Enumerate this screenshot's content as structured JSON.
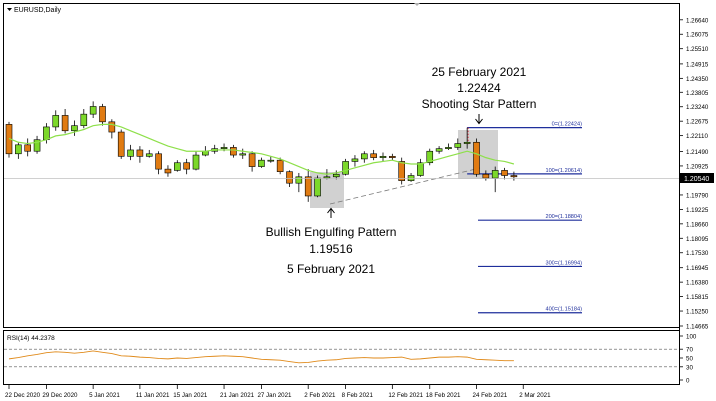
{
  "chart_data": {
    "type": "candlestick",
    "symbol_label": "EURUSD,Daily",
    "current_price": "1.20540",
    "price_axis": {
      "min": 1.14665,
      "max": 1.26945,
      "ticks": [
        "1.26640",
        "1.26075",
        "1.25510",
        "1.24915",
        "1.24350",
        "1.23805",
        "1.23240",
        "1.22675",
        "1.22110",
        "1.21490",
        "1.20925",
        "1.20360",
        "1.19790",
        "1.19225",
        "1.18660",
        "1.18095",
        "1.17530",
        "1.16945",
        "1.16380",
        "1.15815",
        "1.15250",
        "1.14665"
      ]
    },
    "x_labels": [
      {
        "i": 0,
        "label": "22 Dec 2020"
      },
      {
        "i": 4,
        "label": "29 Dec 2020"
      },
      {
        "i": 9,
        "label": "5 Jan 2021"
      },
      {
        "i": 14,
        "label": "11 Jan 2021"
      },
      {
        "i": 18,
        "label": "15 Jan 2021"
      },
      {
        "i": 23,
        "label": "21 Jan 2021"
      },
      {
        "i": 27,
        "label": "27 Jan 2021"
      },
      {
        "i": 32,
        "label": "2 Feb 2021"
      },
      {
        "i": 36,
        "label": "8 Feb 2021"
      },
      {
        "i": 41,
        "label": "12 Feb 2021"
      },
      {
        "i": 45,
        "label": "18 Feb 2021"
      },
      {
        "i": 50,
        "label": "24 Feb 2021"
      },
      {
        "i": 55,
        "label": "2 Mar 2021"
      }
    ],
    "bull_color": "#7cd82a",
    "bear_color": "#e07b12",
    "ma_color": "#8ee04a",
    "candles": [
      [
        1.2255,
        1.2265,
        1.2125,
        1.214
      ],
      [
        1.214,
        1.2185,
        1.212,
        1.2175
      ],
      [
        1.2175,
        1.22,
        1.213,
        1.215
      ],
      [
        1.215,
        1.221,
        1.214,
        1.2195
      ],
      [
        1.2195,
        1.226,
        1.218,
        1.2245
      ],
      [
        1.2245,
        1.231,
        1.223,
        1.229
      ],
      [
        1.229,
        1.2315,
        1.222,
        1.223
      ],
      [
        1.223,
        1.227,
        1.221,
        1.225
      ],
      [
        1.225,
        1.2315,
        1.224,
        1.2295
      ],
      [
        1.2295,
        1.2345,
        1.228,
        1.2325
      ],
      [
        1.2325,
        1.2335,
        1.225,
        1.2265
      ],
      [
        1.2265,
        1.2275,
        1.22,
        1.2225
      ],
      [
        1.2225,
        1.2235,
        1.212,
        1.213
      ],
      [
        1.213,
        1.2175,
        1.2115,
        1.2155
      ],
      [
        1.2155,
        1.217,
        1.2105,
        1.213
      ],
      [
        1.213,
        1.2155,
        1.2125,
        1.214
      ],
      [
        1.214,
        1.215,
        1.206,
        1.208
      ],
      [
        1.208,
        1.2095,
        1.205,
        1.2065
      ],
      [
        1.2075,
        1.2115,
        1.207,
        1.2105
      ],
      [
        1.2105,
        1.212,
        1.206,
        1.208
      ],
      [
        1.208,
        1.215,
        1.2075,
        1.2135
      ],
      [
        1.2135,
        1.217,
        1.213,
        1.215
      ],
      [
        1.215,
        1.2175,
        1.214,
        1.216
      ],
      [
        1.216,
        1.218,
        1.215,
        1.2165
      ],
      [
        1.2165,
        1.2175,
        1.2125,
        1.2135
      ],
      [
        1.2135,
        1.216,
        1.212,
        1.214
      ],
      [
        1.214,
        1.215,
        1.207,
        1.209
      ],
      [
        1.209,
        1.2125,
        1.2085,
        1.2115
      ],
      [
        1.2115,
        1.213,
        1.2105,
        1.2115
      ],
      [
        1.2115,
        1.2125,
        1.206,
        1.207
      ],
      [
        1.207,
        1.2075,
        1.201,
        1.2025
      ],
      [
        1.2025,
        1.2065,
        1.199,
        1.205
      ],
      [
        1.205,
        1.208,
        1.1952,
        1.1975
      ],
      [
        1.1975,
        1.2055,
        1.197,
        1.2045
      ],
      [
        1.2045,
        1.208,
        1.204,
        1.205
      ],
      [
        1.205,
        1.2075,
        1.204,
        1.206
      ],
      [
        1.206,
        1.212,
        1.2055,
        1.211
      ],
      [
        1.211,
        1.2135,
        1.209,
        1.212
      ],
      [
        1.212,
        1.215,
        1.2105,
        1.214
      ],
      [
        1.214,
        1.2155,
        1.2115,
        1.2125
      ],
      [
        1.2125,
        1.2145,
        1.211,
        1.213
      ],
      [
        1.213,
        1.214,
        1.2115,
        1.2125
      ],
      [
        1.211,
        1.2125,
        1.202,
        1.2035
      ],
      [
        1.2035,
        1.2065,
        1.203,
        1.2055
      ],
      [
        1.2055,
        1.212,
        1.205,
        1.2105
      ],
      [
        1.2105,
        1.216,
        1.2095,
        1.215
      ],
      [
        1.215,
        1.217,
        1.214,
        1.216
      ],
      [
        1.216,
        1.218,
        1.2155,
        1.2165
      ],
      [
        1.2165,
        1.22,
        1.2155,
        1.218
      ],
      [
        1.218,
        1.2242,
        1.216,
        1.2185
      ],
      [
        1.2185,
        1.22,
        1.205,
        1.206
      ],
      [
        1.206,
        1.2075,
        1.2035,
        1.2045
      ],
      [
        1.2045,
        1.209,
        1.199,
        1.2075
      ],
      [
        1.2075,
        1.2085,
        1.204,
        1.2055
      ],
      [
        1.2055,
        1.207,
        1.2035,
        1.205
      ]
    ],
    "ma_values": [
      1.22,
      1.2185,
      1.218,
      1.2185,
      1.2195,
      1.221,
      1.2215,
      1.2225,
      1.2235,
      1.225,
      1.2255,
      1.2255,
      1.2245,
      1.223,
      1.2215,
      1.22,
      1.2185,
      1.217,
      1.216,
      1.215,
      1.215,
      1.215,
      1.2155,
      1.2155,
      1.2155,
      1.215,
      1.2145,
      1.214,
      1.213,
      1.212,
      1.2105,
      1.209,
      1.2075,
      1.2065,
      1.206,
      1.2065,
      1.2075,
      1.2085,
      1.2095,
      1.2105,
      1.211,
      1.2115,
      1.2105,
      1.21,
      1.21,
      1.211,
      1.212,
      1.213,
      1.214,
      1.215,
      1.214,
      1.2125,
      1.2115,
      1.211,
      1.21
    ],
    "fib_levels": [
      {
        "label": "0=(1.22424)",
        "value": 1.22424
      },
      {
        "label": "100=(1.20614)",
        "value": 1.20614
      },
      {
        "label": "200=(1.18804)",
        "value": 1.18804
      },
      {
        "label": "300=(1.16994)",
        "value": 1.16994
      },
      {
        "label": "400=(1.15184)",
        "value": 1.15184
      }
    ],
    "annotations": {
      "top": [
        "25 February 2021",
        "1.22424",
        "Shooting Star Pattern"
      ],
      "bottom": [
        "Bullish Engulfing Pattern",
        "1.19516",
        "5 February 2021"
      ]
    },
    "rsi": {
      "label": "RSI(14) 44.2378",
      "ticks": [
        "100",
        "70",
        "50",
        "30",
        "0"
      ],
      "levels": [
        70,
        30
      ],
      "values": [
        48,
        51,
        55,
        58,
        62,
        64,
        63,
        61,
        63,
        66,
        63,
        60,
        55,
        54,
        52,
        51,
        49,
        48,
        50,
        49,
        51,
        53,
        54,
        55,
        54,
        53,
        50,
        47,
        46,
        45,
        42,
        39,
        40,
        43,
        45,
        46,
        49,
        50,
        51,
        50,
        50,
        51,
        52,
        47,
        48,
        50,
        52,
        52,
        53,
        52,
        47,
        46,
        45,
        44,
        44
      ]
    }
  }
}
